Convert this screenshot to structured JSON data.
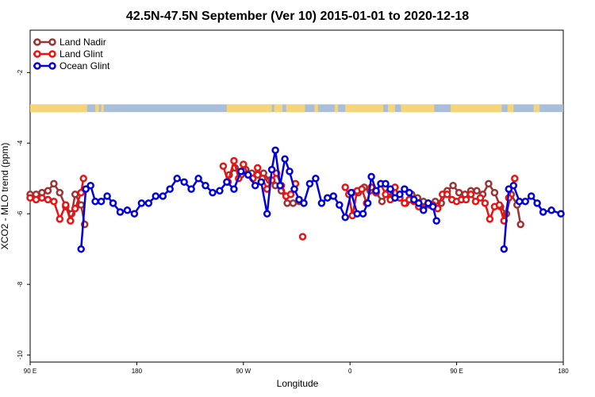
{
  "chart_data": {
    "type": "line",
    "title": "42.5N-47.5N September (Ver 10)   2015-01-01 to 2020-12-18",
    "xlabel": "Longitude",
    "ylabel": "XCO2 - MLO trend (ppm)",
    "x_ticks": [
      {
        "value": 90,
        "label": "90 E"
      },
      {
        "value": 180,
        "label": "180"
      },
      {
        "value": 270,
        "label": "90 W"
      },
      {
        "value": 360,
        "label": "0"
      },
      {
        "value": 450,
        "label": "90 E"
      },
      {
        "value": 540,
        "label": "180"
      }
    ],
    "y_ticks": [
      {
        "value": -2,
        "label": "-2"
      },
      {
        "value": -4,
        "label": "-4"
      },
      {
        "value": -6,
        "label": "-6"
      },
      {
        "value": -8,
        "label": "-8"
      },
      {
        "value": -10,
        "label": "-10"
      }
    ],
    "xlim": [
      90,
      540
    ],
    "ylim": [
      -10.2,
      -0.8
    ],
    "grid": false,
    "legend_position": "top-left",
    "land_ocean_strip": {
      "y_range": [
        -3.12,
        -2.9
      ],
      "land_color": "#f5d57a",
      "ocean_color": "#a9bfd9",
      "land_segments": [
        [
          90,
          138
        ],
        [
          145,
          148
        ],
        [
          150,
          152
        ],
        [
          256,
          294
        ],
        [
          296,
          303
        ],
        [
          306,
          322
        ],
        [
          330,
          333
        ],
        [
          347,
          350
        ],
        [
          356,
          388
        ],
        [
          392,
          398
        ],
        [
          403,
          431
        ],
        [
          445,
          488
        ],
        [
          493,
          498
        ],
        [
          515,
          520
        ]
      ]
    },
    "series": [
      {
        "name": "Land Nadir",
        "color": "#9c3333",
        "points": [
          [
            90,
            -5.45
          ],
          [
            95,
            -5.45
          ],
          [
            100,
            -5.4
          ],
          [
            105,
            -5.35
          ],
          [
            110,
            -5.15
          ],
          [
            115,
            -5.4
          ],
          [
            120,
            -5.8
          ],
          [
            125,
            -6.0
          ],
          [
            128,
            -5.45
          ],
          [
            133,
            -5.75
          ],
          [
            136,
            -6.3
          ],
          null,
          [
            258,
            -4.9
          ],
          [
            263,
            -4.7
          ],
          [
            268,
            -4.9
          ],
          [
            272,
            -4.75
          ],
          [
            277,
            -4.85
          ],
          [
            282,
            -4.9
          ],
          [
            287,
            -4.85
          ],
          [
            292,
            -5.05
          ],
          [
            297,
            -5.2
          ],
          [
            302,
            -5.35
          ],
          [
            307,
            -5.7
          ],
          [
            312,
            -5.7
          ],
          [
            317,
            -5.65
          ],
          null,
          [
            362,
            -5.4
          ],
          [
            367,
            -5.4
          ],
          [
            372,
            -5.25
          ],
          [
            377,
            -5.35
          ],
          [
            382,
            -5.4
          ],
          [
            387,
            -5.65
          ],
          [
            392,
            -5.4
          ],
          [
            397,
            -5.55
          ],
          [
            402,
            -5.55
          ],
          [
            407,
            -5.7
          ],
          [
            412,
            -5.45
          ],
          [
            417,
            -5.55
          ],
          [
            422,
            -5.65
          ],
          [
            427,
            -5.75
          ],
          [
            432,
            -5.65
          ],
          [
            437,
            -5.7
          ],
          [
            442,
            -5.35
          ],
          [
            447,
            -5.2
          ],
          [
            452,
            -5.4
          ],
          [
            457,
            -5.45
          ],
          [
            462,
            -5.35
          ],
          [
            467,
            -5.35
          ],
          [
            472,
            -5.45
          ],
          [
            477,
            -5.15
          ],
          [
            482,
            -5.4
          ],
          [
            487,
            -5.8
          ],
          [
            492,
            -6.0
          ],
          [
            496,
            -5.45
          ],
          [
            501,
            -5.75
          ],
          [
            504,
            -6.3
          ]
        ]
      },
      {
        "name": "Land Glint",
        "color": "#ee1111",
        "points": [
          [
            90,
            -5.55
          ],
          [
            95,
            -5.6
          ],
          [
            100,
            -5.55
          ],
          [
            105,
            -5.6
          ],
          [
            110,
            -5.65
          ],
          [
            115,
            -6.15
          ],
          [
            120,
            -5.75
          ],
          [
            124,
            -6.2
          ],
          [
            128,
            -5.85
          ],
          [
            133,
            -5.4
          ],
          [
            135,
            -5.0
          ],
          null,
          [
            253,
            -4.65
          ],
          [
            257,
            -5.1
          ],
          [
            262,
            -4.5
          ],
          [
            266,
            -5.0
          ],
          [
            270,
            -4.6
          ],
          [
            274,
            -4.9
          ],
          [
            278,
            -5.0
          ],
          [
            282,
            -4.7
          ],
          [
            286,
            -5.0
          ],
          [
            290,
            -5.3
          ],
          [
            294,
            -5.05
          ],
          [
            298,
            -4.85
          ],
          [
            302,
            -5.2
          ],
          [
            306,
            -5.5
          ],
          [
            310,
            -5.45
          ],
          [
            314,
            -5.15
          ],
          null,
          [
            320,
            -6.65
          ],
          null,
          [
            356,
            -5.25
          ],
          [
            359,
            -5.45
          ],
          [
            362,
            -6.05
          ],
          [
            366,
            -5.35
          ],
          [
            370,
            -5.3
          ],
          [
            374,
            -5.7
          ],
          [
            378,
            -5.25
          ],
          [
            382,
            -5.4
          ],
          [
            386,
            -5.15
          ],
          [
            390,
            -5.45
          ],
          [
            394,
            -5.6
          ],
          [
            398,
            -5.25
          ],
          [
            402,
            -5.55
          ],
          [
            406,
            -5.7
          ],
          [
            410,
            -5.6
          ],
          [
            414,
            -5.65
          ],
          [
            418,
            -5.8
          ],
          [
            422,
            -5.85
          ],
          [
            426,
            -5.7
          ],
          [
            430,
            -5.75
          ],
          [
            434,
            -5.85
          ],
          [
            438,
            -5.45
          ],
          [
            442,
            -5.45
          ],
          [
            446,
            -5.6
          ],
          [
            450,
            -5.65
          ],
          [
            454,
            -5.6
          ],
          [
            458,
            -5.6
          ],
          [
            462,
            -5.45
          ],
          [
            466,
            -5.65
          ],
          [
            470,
            -5.55
          ],
          [
            474,
            -5.7
          ],
          [
            478,
            -6.15
          ],
          [
            482,
            -5.8
          ],
          [
            486,
            -5.75
          ],
          [
            490,
            -6.2
          ],
          [
            494,
            -5.55
          ],
          [
            499,
            -5.0
          ]
        ]
      },
      {
        "name": "Ocean Glint",
        "color": "#0000dd",
        "points": [
          [
            133,
            -7.0
          ],
          [
            137,
            -5.3
          ],
          [
            141,
            -5.2
          ],
          [
            145,
            -5.65
          ],
          [
            150,
            -5.65
          ],
          [
            155,
            -5.5
          ],
          [
            160,
            -5.7
          ],
          [
            166,
            -5.95
          ],
          [
            172,
            -5.9
          ],
          [
            178,
            -6.0
          ],
          [
            184,
            -5.7
          ],
          [
            190,
            -5.7
          ],
          [
            196,
            -5.5
          ],
          [
            202,
            -5.5
          ],
          [
            208,
            -5.3
          ],
          [
            214,
            -5.0
          ],
          [
            220,
            -5.1
          ],
          [
            226,
            -5.3
          ],
          [
            232,
            -5.0
          ],
          [
            238,
            -5.2
          ],
          [
            244,
            -5.4
          ],
          [
            250,
            -5.35
          ],
          [
            256,
            -5.1
          ],
          [
            262,
            -5.3
          ],
          [
            268,
            -4.8
          ],
          [
            274,
            -4.9
          ],
          [
            280,
            -5.2
          ],
          [
            285,
            -5.1
          ],
          [
            290,
            -6.0
          ],
          [
            294,
            -4.75
          ],
          [
            297,
            -4.2
          ],
          [
            301,
            -5.2
          ],
          [
            305,
            -4.45
          ],
          [
            309,
            -4.8
          ],
          [
            313,
            -5.3
          ],
          [
            317,
            -5.6
          ],
          [
            321,
            -5.7
          ],
          [
            326,
            -5.15
          ],
          [
            331,
            -5.0
          ],
          [
            336,
            -5.7
          ],
          [
            341,
            -5.55
          ],
          [
            346,
            -5.5
          ],
          [
            351,
            -5.75
          ],
          [
            356,
            -6.1
          ],
          [
            361,
            -5.4
          ],
          [
            366,
            -6.0
          ],
          [
            371,
            -6.0
          ],
          [
            375,
            -5.7
          ],
          [
            378,
            -4.95
          ],
          [
            382,
            -5.35
          ],
          [
            386,
            -5.15
          ],
          [
            390,
            -5.15
          ],
          [
            394,
            -5.3
          ],
          [
            398,
            -5.55
          ],
          [
            402,
            -5.45
          ],
          [
            406,
            -5.3
          ],
          [
            410,
            -5.4
          ],
          [
            414,
            -5.6
          ],
          [
            418,
            -5.7
          ],
          [
            422,
            -5.9
          ],
          [
            426,
            -5.7
          ],
          [
            430,
            -5.8
          ],
          [
            433,
            -6.2
          ],
          null,
          [
            490,
            -7.0
          ],
          [
            494,
            -5.3
          ],
          [
            498,
            -5.2
          ],
          [
            503,
            -5.65
          ],
          [
            508,
            -5.65
          ],
          [
            513,
            -5.5
          ],
          [
            518,
            -5.7
          ],
          [
            523,
            -5.95
          ],
          [
            530,
            -5.9
          ],
          [
            538,
            -6.0
          ]
        ]
      }
    ]
  }
}
